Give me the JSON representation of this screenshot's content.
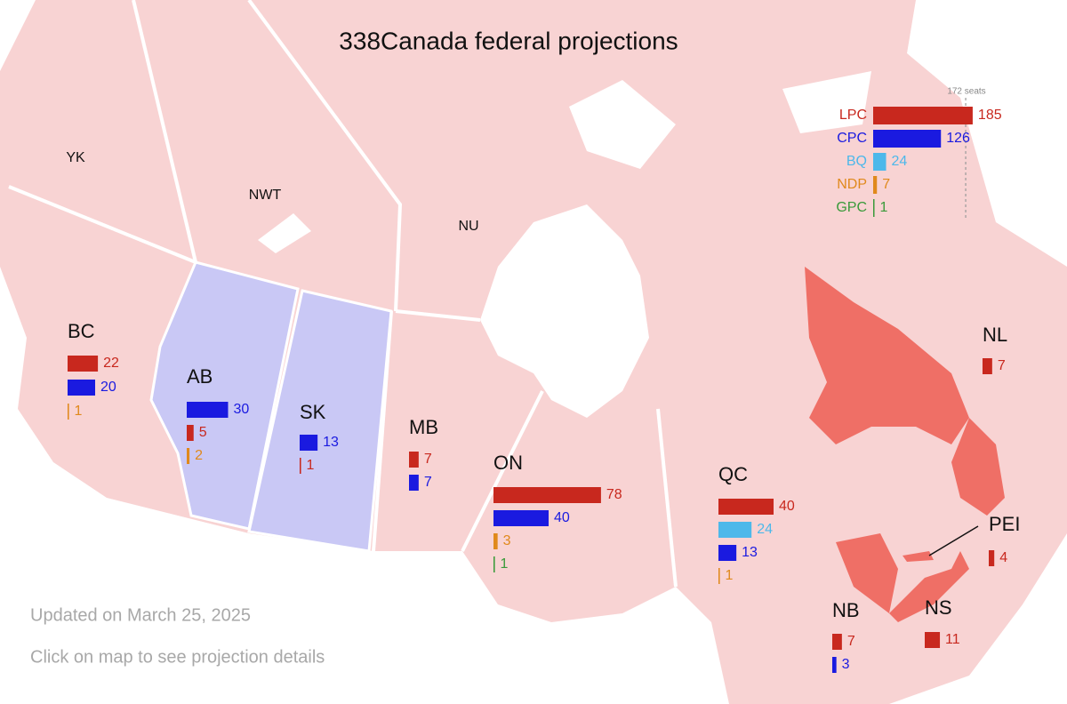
{
  "title": "338Canada federal projections",
  "national": {
    "majority": {
      "value": 172,
      "label": "172 seats"
    },
    "parties": [
      {
        "name": "LPC",
        "color": "#c8281e",
        "seats": 185
      },
      {
        "name": "CPC",
        "color": "#1a1ae0",
        "seats": 126
      },
      {
        "name": "BQ",
        "color": "#4db8ea",
        "seats": 24
      },
      {
        "name": "NDP",
        "color": "#e0891c",
        "seats": 7
      },
      {
        "name": "GPC",
        "color": "#3a9a3a",
        "seats": 1
      }
    ]
  },
  "regions": [
    {
      "name": "YK",
      "bars": []
    },
    {
      "name": "NWT",
      "bars": []
    },
    {
      "name": "NU",
      "bars": []
    },
    {
      "name": "BC",
      "bars": [
        {
          "color": "#c8281e",
          "seats": 22
        },
        {
          "color": "#1a1ae0",
          "seats": 20
        },
        {
          "color": "#e0891c",
          "seats": 1
        }
      ]
    },
    {
      "name": "AB",
      "bars": [
        {
          "color": "#1a1ae0",
          "seats": 30
        },
        {
          "color": "#c8281e",
          "seats": 5
        },
        {
          "color": "#e0891c",
          "seats": 2
        }
      ]
    },
    {
      "name": "SK",
      "bars": [
        {
          "color": "#1a1ae0",
          "seats": 13
        },
        {
          "color": "#c8281e",
          "seats": 1
        }
      ]
    },
    {
      "name": "MB",
      "bars": [
        {
          "color": "#c8281e",
          "seats": 7
        },
        {
          "color": "#1a1ae0",
          "seats": 7
        }
      ]
    },
    {
      "name": "ON",
      "bars": [
        {
          "color": "#c8281e",
          "seats": 78
        },
        {
          "color": "#1a1ae0",
          "seats": 40
        },
        {
          "color": "#e0891c",
          "seats": 3
        },
        {
          "color": "#3a9a3a",
          "seats": 1
        }
      ]
    },
    {
      "name": "QC",
      "bars": [
        {
          "color": "#c8281e",
          "seats": 40
        },
        {
          "color": "#4db8ea",
          "seats": 24
        },
        {
          "color": "#1a1ae0",
          "seats": 13
        },
        {
          "color": "#e0891c",
          "seats": 1
        }
      ]
    },
    {
      "name": "NL",
      "bars": [
        {
          "color": "#c8281e",
          "seats": 7
        }
      ]
    },
    {
      "name": "PEI",
      "bars": [
        {
          "color": "#c8281e",
          "seats": 4
        }
      ]
    },
    {
      "name": "NB",
      "bars": [
        {
          "color": "#c8281e",
          "seats": 7
        },
        {
          "color": "#1a1ae0",
          "seats": 3
        }
      ]
    },
    {
      "name": "NS",
      "bars": [
        {
          "color": "#c8281e",
          "seats": 11
        }
      ]
    }
  ],
  "notes": [
    "Updated on March 25, 2025",
    "Click on map to see projection details"
  ]
}
